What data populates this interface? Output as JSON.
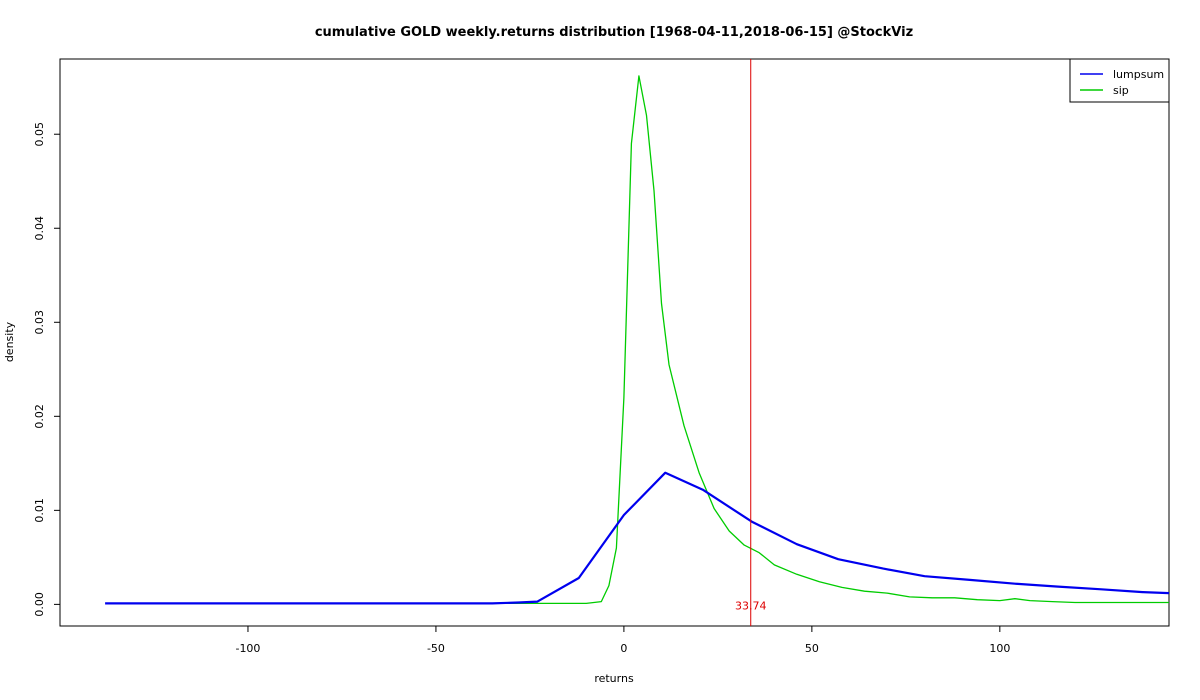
{
  "chart_data": {
    "type": "line",
    "title": "cumulative GOLD weekly.returns distribution [1968-04-11,2018-06-15] @StockViz",
    "xlabel": "returns",
    "ylabel": "density",
    "xlim": [
      -150,
      145
    ],
    "ylim": [
      -0.0023,
      0.058
    ],
    "xticks": [
      -100,
      -50,
      0,
      50,
      100
    ],
    "xtick_labels": [
      "-100",
      "-50",
      "0",
      "50",
      "100"
    ],
    "yticks": [
      0.0,
      0.01,
      0.02,
      0.03,
      0.04,
      0.05
    ],
    "ytick_labels": [
      "0.00",
      "0.01",
      "0.02",
      "0.03",
      "0.04",
      "0.05"
    ],
    "grid": false,
    "legend_position": "top-right",
    "series": [
      {
        "name": "lumpsum",
        "color": "#0000ee",
        "x": [
          -138,
          -128,
          -115,
          -100,
          -80,
          -60,
          -45,
          -35,
          -28,
          -23,
          -12,
          0,
          11,
          21,
          34,
          46,
          57,
          69,
          80,
          92,
          104,
          115,
          127,
          138,
          145
        ],
        "y": [
          0.0001,
          0.0001,
          0.0001,
          0.0001,
          0.0001,
          0.0001,
          0.0001,
          0.0001,
          0.0002,
          0.0003,
          0.0028,
          0.0095,
          0.014,
          0.0122,
          0.0088,
          0.0064,
          0.0048,
          0.0038,
          0.003,
          0.0026,
          0.0022,
          0.0019,
          0.0016,
          0.0013,
          0.0012
        ]
      },
      {
        "name": "sip",
        "color": "#00cc00",
        "x": [
          -48,
          -40,
          -30,
          -20,
          -10,
          -6,
          -4,
          -2,
          0,
          2,
          4,
          6,
          8,
          10,
          12,
          16,
          20,
          24,
          28,
          32,
          36,
          40,
          46,
          52,
          58,
          64,
          70,
          76,
          82,
          88,
          94,
          100,
          104,
          108,
          114,
          120,
          126,
          132,
          140,
          145
        ],
        "y": [
          0.0001,
          0.0001,
          0.0001,
          0.0001,
          0.0001,
          0.0003,
          0.002,
          0.006,
          0.022,
          0.049,
          0.0562,
          0.052,
          0.044,
          0.032,
          0.0255,
          0.019,
          0.014,
          0.0102,
          0.0078,
          0.0063,
          0.0055,
          0.0042,
          0.0032,
          0.0024,
          0.0018,
          0.0014,
          0.0012,
          0.0008,
          0.0007,
          0.0007,
          0.0005,
          0.0004,
          0.0006,
          0.0004,
          0.0003,
          0.0002,
          0.0002,
          0.0002,
          0.0002,
          0.0002
        ]
      }
    ],
    "vline": {
      "x": 33.74,
      "label": "33.74",
      "color": "#dd0000"
    }
  }
}
